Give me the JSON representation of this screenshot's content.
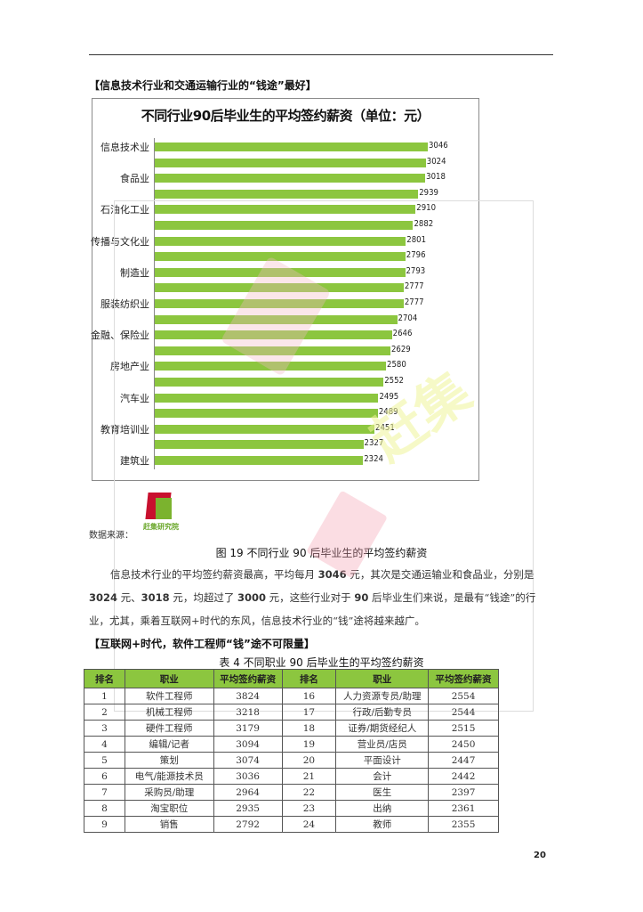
{
  "section1": {
    "heading": "【信息技术行业和交通运输行业的“钱途”最好】"
  },
  "chart_data": {
    "type": "bar",
    "orientation": "horizontal",
    "title": "不同行业90后毕业生的平均签约薪资（单位：元）",
    "xlabel": "",
    "ylabel": "",
    "categories": [
      "信息技术业",
      "",
      "食品业",
      "",
      "石油化工业",
      "",
      "传播与文化业",
      "",
      "制造业",
      "",
      "服装纺织业",
      "",
      "金融、保险业",
      "",
      "房地产业",
      "",
      "汽车业",
      "",
      "教育培训业",
      "",
      "建筑业"
    ],
    "values": [
      3046,
      3024,
      3018,
      2939,
      2910,
      2882,
      2801,
      2796,
      2793,
      2777,
      2777,
      2704,
      2646,
      2629,
      2580,
      2552,
      2495,
      2489,
      2451,
      2327,
      2324
    ],
    "value_labels": [
      "3046",
      "3024",
      "3018",
      "2939",
      "2910",
      "2882",
      "2801",
      "2796",
      "2793",
      "2777",
      "2777",
      "2704",
      "2646",
      "2629",
      "2580",
      "2552",
      "2495",
      "2489",
      "2451",
      "2327",
      "2324"
    ],
    "bar_color": "#8cc63f",
    "xlim": [
      0,
      3046
    ],
    "grid": false,
    "legend": null
  },
  "source": {
    "label": "数据来源：",
    "logo_text": "赶集研究院"
  },
  "figure_caption": "图 19 不同行业 90 后毕业生的平均签约薪资",
  "paragraph": {
    "p1": "信息技术行业的平均签约薪资最高，平均每月 ",
    "v1": "3046",
    "p2": " 元，其次是交通运输业和食品业，分别是 ",
    "v2": "3024",
    "p3": " 元、",
    "v3": "3018",
    "p4": " 元，均超过了 ",
    "v4": "3000",
    "p5": " 元，这些行业对于 ",
    "v5": "90",
    "p6": " 后毕业生们来说，是最有“钱途”的行业，尤其，乘着互联网+时代的东风，信息技术行业的“钱”途将越来越广。"
  },
  "section2": {
    "heading": "【互联网+时代，软件工程师“钱”途不可限量】"
  },
  "table": {
    "caption": "表 4 不同职业 90 后毕业生的平均签约薪资",
    "headers": [
      "排名",
      "职业",
      "平均签约薪资",
      "排名",
      "职业",
      "平均签约薪资"
    ],
    "rows": [
      [
        "1",
        "软件工程师",
        "3824",
        "16",
        "人力资源专员/助理",
        "2554"
      ],
      [
        "2",
        "机械工程师",
        "3218",
        "17",
        "行政/后勤专员",
        "2544"
      ],
      [
        "3",
        "硬件工程师",
        "3179",
        "18",
        "证券/期货经纪人",
        "2515"
      ],
      [
        "4",
        "编辑/记者",
        "3094",
        "19",
        "营业员/店员",
        "2450"
      ],
      [
        "5",
        "策划",
        "3074",
        "20",
        "平面设计",
        "2447"
      ],
      [
        "6",
        "电气/能源技术员",
        "3036",
        "21",
        "会计",
        "2442"
      ],
      [
        "7",
        "采购员/助理",
        "2964",
        "22",
        "医生",
        "2397"
      ],
      [
        "8",
        "淘宝职位",
        "2935",
        "23",
        "出纳",
        "2361"
      ],
      [
        "9",
        "销售",
        "2792",
        "24",
        "教师",
        "2355"
      ]
    ],
    "header_color": "#8cc63f"
  },
  "page_number": "20",
  "watermark_text": "赶集"
}
